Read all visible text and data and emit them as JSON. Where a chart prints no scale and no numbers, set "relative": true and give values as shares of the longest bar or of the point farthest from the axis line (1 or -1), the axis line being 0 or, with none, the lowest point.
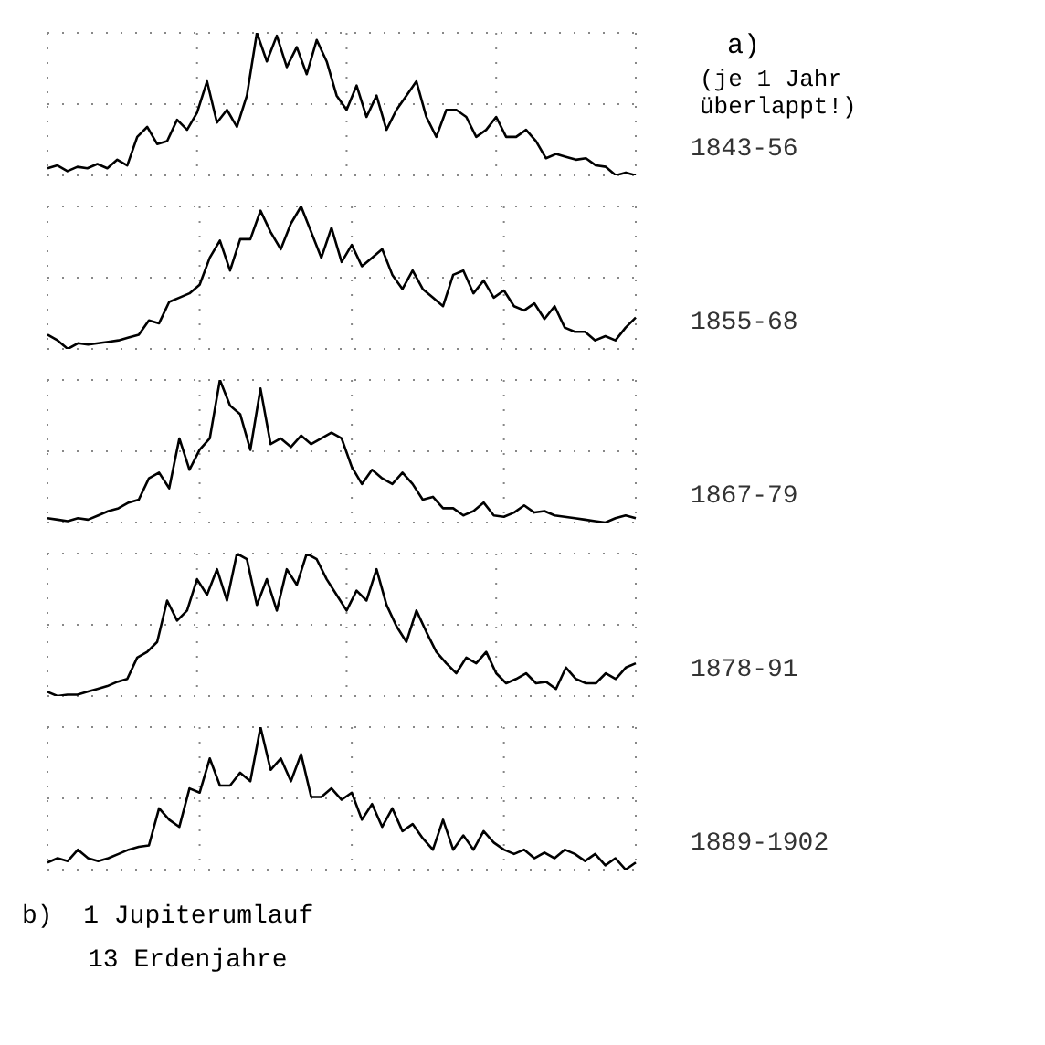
{
  "chart_data": [
    {
      "type": "line",
      "annotations": [
        "a)",
        "(je 1 Jahr überlappt!)"
      ],
      "relative": true,
      "grid": true,
      "marker": "none",
      "line_style": "solid",
      "categories": [
        null,
        null,
        null,
        null,
        null,
        null,
        null,
        null,
        null,
        null,
        null,
        null,
        null,
        null,
        null,
        null,
        null,
        null,
        null,
        null,
        null,
        null,
        null,
        null,
        null,
        null,
        null,
        null,
        null,
        null,
        null,
        null,
        null,
        null,
        null,
        null,
        null,
        null,
        null,
        null,
        null,
        null,
        null,
        null,
        null,
        null,
        null,
        null,
        null,
        null,
        null,
        null,
        null,
        null,
        null,
        null,
        null,
        null,
        null,
        null
      ],
      "series": [
        {
          "name": "1843-56",
          "color": "#000000",
          "values": [
            0.05,
            0.07,
            0.03,
            0.06,
            0.05,
            0.08,
            0.05,
            0.11,
            0.07,
            0.27,
            0.34,
            0.22,
            0.24,
            0.39,
            0.32,
            0.44,
            0.66,
            0.37,
            0.46,
            0.34,
            0.56,
            1,
            0.8,
            0.98,
            0.76,
            0.9,
            0.71,
            0.95,
            0.8,
            0.56,
            0.46,
            0.63,
            0.41,
            0.56,
            0.32,
            0.46,
            0.56,
            0.66,
            0.41,
            0.27,
            0.46,
            0.46,
            0.41,
            0.27,
            0.32,
            0.41,
            0.27,
            0.27,
            0.32,
            0.24,
            0.12,
            0.15,
            0.13,
            0.11,
            0.12,
            0.07,
            0.06,
            0,
            0.02,
            0
          ]
        }
      ]
    },
    {
      "type": "line",
      "relative": true,
      "grid": true,
      "marker": "none",
      "line_style": "solid",
      "categories": [
        null,
        null,
        null,
        null,
        null,
        null,
        null,
        null,
        null,
        null,
        null,
        null,
        null,
        null,
        null,
        null,
        null,
        null,
        null,
        null,
        null,
        null,
        null,
        null,
        null,
        null,
        null,
        null,
        null,
        null,
        null,
        null,
        null,
        null,
        null,
        null,
        null,
        null,
        null,
        null,
        null,
        null,
        null,
        null,
        null,
        null,
        null,
        null,
        null,
        null,
        null,
        null,
        null,
        null,
        null,
        null,
        null,
        null,
        null
      ],
      "series": [
        {
          "name": "1855-68",
          "color": "#000000",
          "values": [
            0.1,
            0.06,
            0,
            0.04,
            0.03,
            0.04,
            0.05,
            0.06,
            0.08,
            0.1,
            0.2,
            0.18,
            0.33,
            0.36,
            0.39,
            0.45,
            0.64,
            0.76,
            0.55,
            0.77,
            0.77,
            0.97,
            0.82,
            0.7,
            0.88,
            1,
            0.82,
            0.64,
            0.85,
            0.61,
            0.73,
            0.58,
            0.64,
            0.7,
            0.52,
            0.42,
            0.55,
            0.42,
            0.36,
            0.3,
            0.52,
            0.55,
            0.39,
            0.48,
            0.36,
            0.41,
            0.3,
            0.27,
            0.32,
            0.21,
            0.3,
            0.15,
            0.12,
            0.12,
            0.06,
            0.09,
            0.06,
            0.15,
            0.22
          ]
        }
      ]
    },
    {
      "type": "line",
      "relative": true,
      "grid": true,
      "marker": "none",
      "line_style": "solid",
      "categories": [
        null,
        null,
        null,
        null,
        null,
        null,
        null,
        null,
        null,
        null,
        null,
        null,
        null,
        null,
        null,
        null,
        null,
        null,
        null,
        null,
        null,
        null,
        null,
        null,
        null,
        null,
        null,
        null,
        null,
        null,
        null,
        null,
        null,
        null,
        null,
        null,
        null,
        null,
        null,
        null,
        null,
        null,
        null,
        null,
        null,
        null,
        null,
        null,
        null,
        null,
        null,
        null,
        null,
        null,
        null,
        null,
        null,
        null,
        null
      ],
      "series": [
        {
          "name": "1867-79",
          "color": "#000000",
          "values": [
            0.03,
            0.02,
            0.01,
            0.03,
            0.02,
            0.05,
            0.08,
            0.1,
            0.14,
            0.16,
            0.31,
            0.35,
            0.24,
            0.59,
            0.37,
            0.51,
            0.59,
            1,
            0.82,
            0.76,
            0.51,
            0.94,
            0.55,
            0.59,
            0.53,
            0.61,
            0.55,
            0.59,
            0.63,
            0.59,
            0.39,
            0.27,
            0.37,
            0.31,
            0.27,
            0.35,
            0.27,
            0.16,
            0.18,
            0.1,
            0.1,
            0.05,
            0.08,
            0.14,
            0.05,
            0.04,
            0.07,
            0.12,
            0.07,
            0.08,
            0.05,
            0.04,
            0.03,
            0.02,
            0.01,
            0,
            0.03,
            0.05,
            0.03
          ]
        }
      ]
    },
    {
      "type": "line",
      "relative": true,
      "grid": true,
      "marker": "none",
      "line_style": "solid",
      "categories": [
        null,
        null,
        null,
        null,
        null,
        null,
        null,
        null,
        null,
        null,
        null,
        null,
        null,
        null,
        null,
        null,
        null,
        null,
        null,
        null,
        null,
        null,
        null,
        null,
        null,
        null,
        null,
        null,
        null,
        null,
        null,
        null,
        null,
        null,
        null,
        null,
        null,
        null,
        null,
        null,
        null,
        null,
        null,
        null,
        null,
        null,
        null,
        null,
        null,
        null,
        null,
        null,
        null,
        null,
        null,
        null,
        null,
        null,
        null,
        null
      ],
      "series": [
        {
          "name": "1878-91",
          "color": "#000000",
          "values": [
            0.03,
            0,
            0.01,
            0.01,
            0.03,
            0.05,
            0.07,
            0.1,
            0.12,
            0.27,
            0.31,
            0.38,
            0.67,
            0.53,
            0.6,
            0.82,
            0.71,
            0.89,
            0.67,
            1,
            0.96,
            0.64,
            0.82,
            0.6,
            0.89,
            0.78,
            1,
            0.96,
            0.82,
            0.71,
            0.6,
            0.74,
            0.67,
            0.89,
            0.64,
            0.49,
            0.38,
            0.6,
            0.45,
            0.31,
            0.23,
            0.16,
            0.27,
            0.23,
            0.31,
            0.16,
            0.09,
            0.12,
            0.16,
            0.09,
            0.1,
            0.05,
            0.2,
            0.12,
            0.09,
            0.09,
            0.16,
            0.12,
            0.2,
            0.23
          ]
        }
      ]
    },
    {
      "type": "line",
      "relative": true,
      "grid": true,
      "marker": "none",
      "line_style": "solid",
      "annotations": [
        "b)  1 Jupiterumlauf",
        "13 Erdenjahre"
      ],
      "categories": [
        null,
        null,
        null,
        null,
        null,
        null,
        null,
        null,
        null,
        null,
        null,
        null,
        null,
        null,
        null,
        null,
        null,
        null,
        null,
        null,
        null,
        null,
        null,
        null,
        null,
        null,
        null,
        null,
        null,
        null,
        null,
        null,
        null,
        null,
        null,
        null,
        null,
        null,
        null,
        null,
        null,
        null,
        null,
        null,
        null,
        null,
        null,
        null,
        null,
        null,
        null,
        null,
        null,
        null,
        null,
        null,
        null,
        null,
        null
      ],
      "series": [
        {
          "name": "1889-1902",
          "color": "#000000",
          "values": [
            0.05,
            0.08,
            0.06,
            0.14,
            0.08,
            0.06,
            0.08,
            0.11,
            0.14,
            0.16,
            0.17,
            0.43,
            0.35,
            0.3,
            0.57,
            0.54,
            0.78,
            0.59,
            0.59,
            0.68,
            0.62,
            1,
            0.7,
            0.78,
            0.62,
            0.81,
            0.51,
            0.51,
            0.57,
            0.49,
            0.54,
            0.35,
            0.46,
            0.3,
            0.43,
            0.27,
            0.32,
            0.22,
            0.14,
            0.35,
            0.14,
            0.24,
            0.14,
            0.27,
            0.19,
            0.14,
            0.11,
            0.14,
            0.08,
            0.12,
            0.08,
            0.14,
            0.11,
            0.06,
            0.11,
            0.03,
            0.08,
            0,
            0.05
          ]
        }
      ]
    }
  ]
}
